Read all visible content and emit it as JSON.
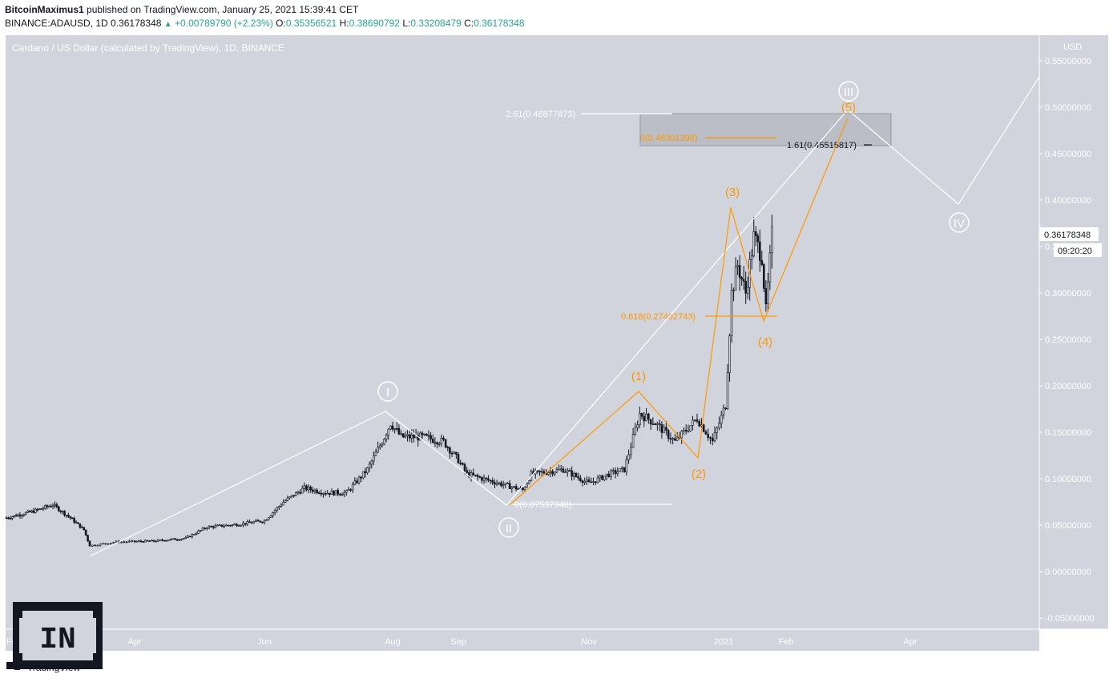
{
  "header": {
    "author": "BitcoinMaximus1",
    "published_text": "published on TradingView.com, January 25, 2021 15:39:41 CET",
    "symbol": "BINANCE:ADAUSD, 1D",
    "last": "0.36178348",
    "change": "+0.00789790 (+2.23%)",
    "o_label": "O:",
    "o": "0.35356521",
    "h_label": "H:",
    "h": "0.38690792",
    "l_label": "L:",
    "l": "0.33208479",
    "c_label": "C:",
    "c": "0.36178348"
  },
  "chart_data": {
    "type": "line",
    "title": "Cardano / US Dollar (calculated by TradingView), 1D, BINANCE",
    "currency_label": "USD",
    "ylim": [
      -0.055,
      0.555
    ],
    "y_ticks": [
      "0.55000000",
      "0.50000000",
      "0.45000000",
      "0.40000000",
      "0.35000000",
      "0.30000000",
      "0.25000000",
      "0.20000000",
      "0.15000000",
      "0.10000000",
      "0.05000000",
      "0.00000000",
      "-0.05000000"
    ],
    "x_ticks": [
      "Feb",
      "Apr",
      "Jun",
      "Aug",
      "Sep",
      "Nov",
      "2021",
      "Feb",
      "Apr"
    ],
    "price_label": "0.36178348",
    "countdown_label": "09:20:20",
    "series": [
      {
        "values": [
          [
            "2020-02-01",
            0.058
          ],
          [
            "2020-02-15",
            0.065
          ],
          [
            "2020-02-25",
            0.072
          ],
          [
            "2020-03-05",
            0.058
          ],
          [
            "2020-03-12",
            0.045
          ],
          [
            "2020-03-15",
            0.028
          ],
          [
            "2020-03-25",
            0.032
          ],
          [
            "2020-04-10",
            0.033
          ],
          [
            "2020-04-25",
            0.036
          ],
          [
            "2020-05-05",
            0.048
          ],
          [
            "2020-05-20",
            0.051
          ],
          [
            "2020-06-01",
            0.055
          ],
          [
            "2020-06-10",
            0.075
          ],
          [
            "2020-06-20",
            0.09
          ],
          [
            "2020-06-30",
            0.085
          ],
          [
            "2020-07-10",
            0.085
          ],
          [
            "2020-07-20",
            0.11
          ],
          [
            "2020-07-27",
            0.14
          ],
          [
            "2020-07-31",
            0.16
          ],
          [
            "2020-08-05",
            0.145
          ],
          [
            "2020-08-15",
            0.145
          ],
          [
            "2020-08-25",
            0.14
          ],
          [
            "2020-09-01",
            0.12
          ],
          [
            "2020-09-05",
            0.105
          ],
          [
            "2020-09-20",
            0.095
          ],
          [
            "2020-10-01",
            0.088
          ],
          [
            "2020-10-05",
            0.105
          ],
          [
            "2020-10-20",
            0.11
          ],
          [
            "2020-11-01",
            0.095
          ],
          [
            "2020-11-10",
            0.105
          ],
          [
            "2020-11-17",
            0.11
          ],
          [
            "2020-11-24",
            0.17
          ],
          [
            "2020-12-01",
            0.16
          ],
          [
            "2020-12-10",
            0.14
          ],
          [
            "2020-12-20",
            0.165
          ],
          [
            "2020-12-27",
            0.14
          ],
          [
            "2021-01-02",
            0.18
          ],
          [
            "2021-01-05",
            0.3
          ],
          [
            "2021-01-08",
            0.33
          ],
          [
            "2021-01-12",
            0.3
          ],
          [
            "2021-01-16",
            0.36
          ],
          [
            "2021-01-20",
            0.34
          ],
          [
            "2021-01-22",
            0.28
          ],
          [
            "2021-01-25",
            0.362
          ]
        ]
      }
    ],
    "wave_labels": {
      "primary": [
        "I",
        "II",
        "III",
        "IV"
      ],
      "minor": [
        "(1)",
        "(2)",
        "(3)",
        "(4)",
        "(5)"
      ]
    },
    "fib_labels": {
      "ext_261": "2.61(0.48877873)",
      "ret_0": "0(0.46301398)",
      "ext_161": "1.61(0.45515817)",
      "ret_0618": "0.618(0.27402743)",
      "base_0": "0(0.07537948)"
    },
    "colors": {
      "background": "#d1d4dc",
      "primary_wave": "#ffffff",
      "minor_wave": "#ff9800",
      "candles": "#131722",
      "target_box": "#b2b5be"
    }
  },
  "footer": {
    "brand": "TradingView",
    "watermark": "IN"
  }
}
